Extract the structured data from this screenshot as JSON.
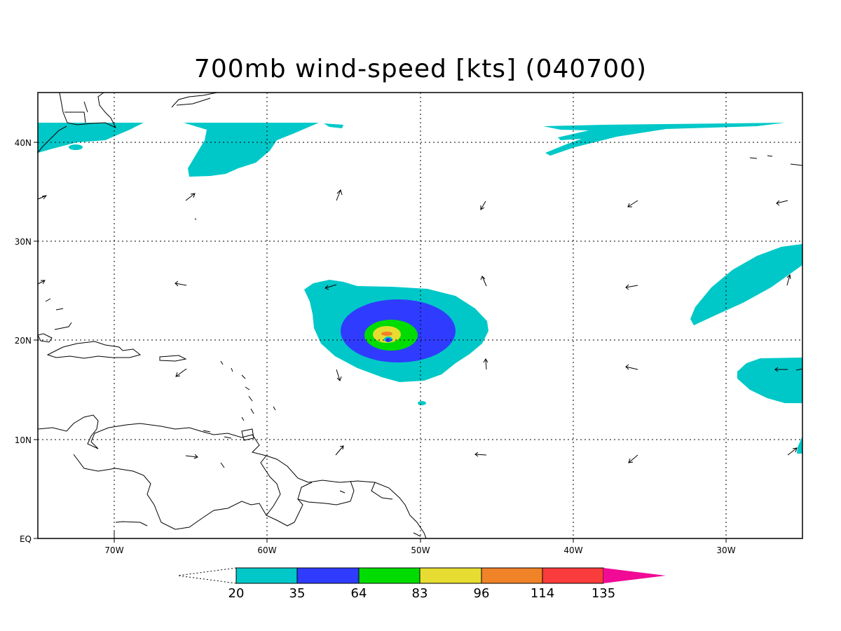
{
  "title": "700mb wind-speed [kts] (040700)",
  "map": {
    "variable": "700mb wind-speed",
    "units": "kts",
    "lon_range": [
      -75,
      -25
    ],
    "lat_range": [
      0,
      45
    ],
    "lon_ticks": [
      {
        "value": -70,
        "label": "70W"
      },
      {
        "value": -60,
        "label": "60W"
      },
      {
        "value": -50,
        "label": "50W"
      },
      {
        "value": -40,
        "label": "40W"
      },
      {
        "value": -30,
        "label": "30W"
      }
    ],
    "lat_ticks": [
      {
        "value": 40,
        "label": "40N"
      },
      {
        "value": 30,
        "label": "30N"
      },
      {
        "value": 20,
        "label": "20N"
      },
      {
        "value": 10,
        "label": "10N"
      },
      {
        "value": 0,
        "label": "EQ"
      }
    ],
    "grid": "dotted",
    "colorbar": {
      "levels": [
        "20",
        "35",
        "64",
        "83",
        "96",
        "114",
        "135"
      ],
      "colors": [
        "#ffffff",
        "#00c8c8",
        "#2f3cff",
        "#00dc00",
        "#e6dc32",
        "#f08228",
        "#fa3c3c",
        "#f00a96"
      ]
    }
  }
}
